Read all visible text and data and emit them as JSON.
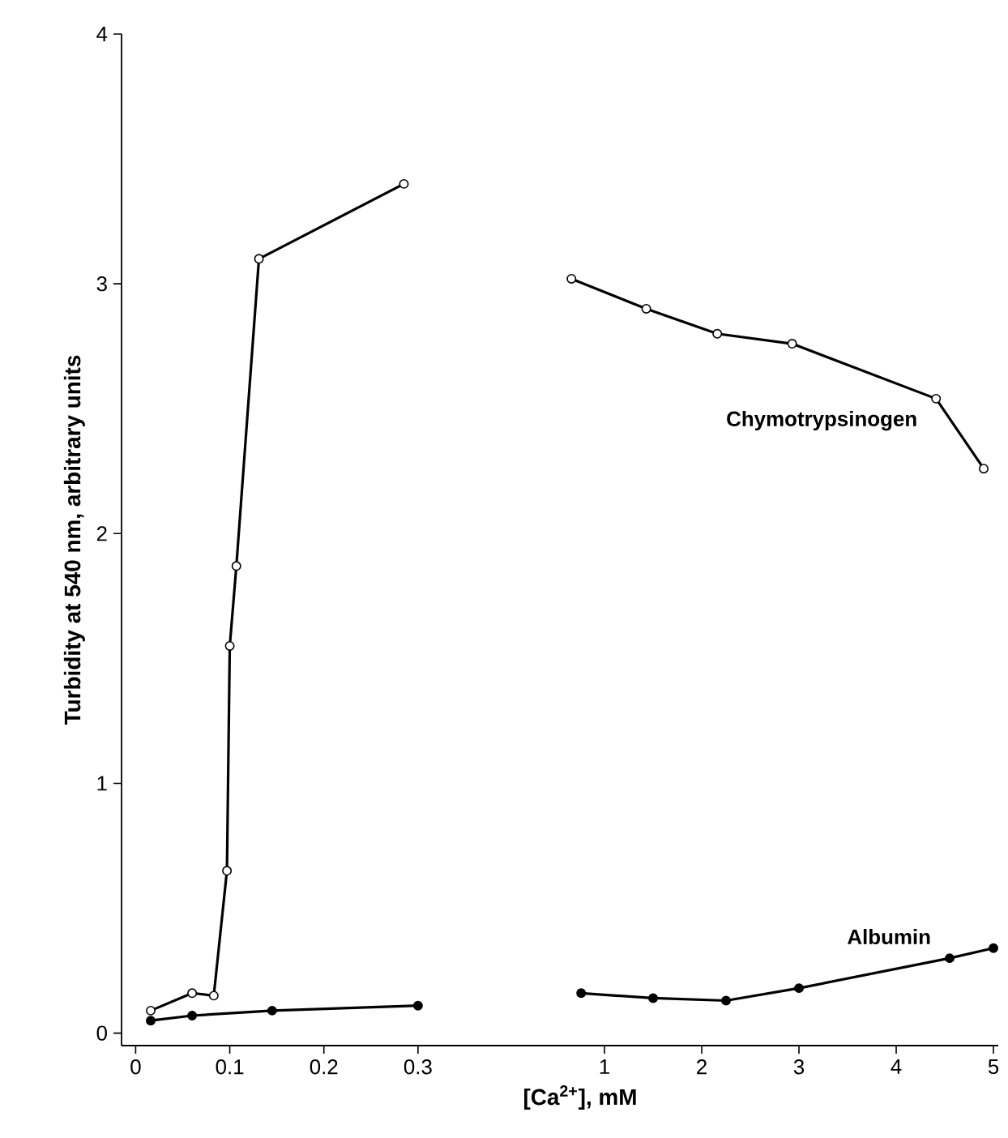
{
  "chart_data": [
    {
      "type": "line",
      "xlim": [
        -0.015,
        0.4
      ],
      "ylim": [
        -0.05,
        4
      ],
      "xticks": [
        0,
        0.1,
        0.2,
        0.3
      ],
      "yticks": [
        0,
        1,
        2,
        3,
        4
      ],
      "ylabel": "Turbidity at 540 nm, arbitrary units",
      "marker": "circle",
      "line_style": "solid",
      "series": [
        {
          "color": "#000000",
          "x": [
            0.016,
            0.06,
            0.083,
            0.097,
            0.1,
            0.107,
            0.131,
            0.285
          ],
          "values": [
            0.09,
            0.16,
            0.15,
            0.65,
            1.55,
            1.87,
            3.1,
            3.4
          ]
        },
        {
          "color": "#000000",
          "x": [
            0.016,
            0.06,
            0.145,
            0.3
          ],
          "values": [
            0.05,
            0.07,
            0.09,
            0.11
          ]
        }
      ]
    },
    {
      "type": "line",
      "xlim": [
        0.05,
        5.05
      ],
      "ylim": [
        -0.05,
        4
      ],
      "xticks": [
        1,
        2,
        3,
        4,
        5
      ],
      "tick_labels": "x",
      "xlabel": "[Ca$^{2+}$], mM",
      "marker": "circle",
      "line_style": "solid",
      "series": [
        {
          "name": "Chymotrypsinogen",
          "color": "#000000",
          "x": [
            0.66,
            1.43,
            2.16,
            2.93,
            4.41,
            4.9
          ],
          "values": [
            3.02,
            2.9,
            2.8,
            2.76,
            2.54,
            2.26
          ]
        },
        {
          "name": "Albumin",
          "color": "#000000",
          "x": [
            0.76,
            1.5,
            2.25,
            3.0,
            4.55,
            5.0
          ],
          "values": [
            0.16,
            0.14,
            0.13,
            0.18,
            0.3,
            0.34
          ]
        }
      ]
    }
  ]
}
